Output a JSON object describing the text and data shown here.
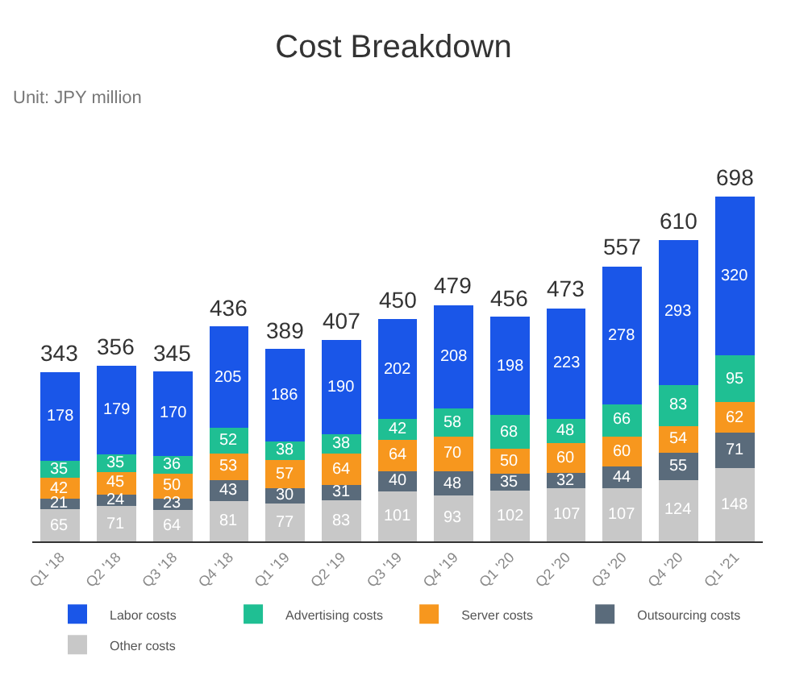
{
  "chart_data": {
    "type": "bar",
    "title": "Cost Breakdown",
    "subtitle": "Unit: JPY million",
    "categories": [
      "Q1 '18",
      "Q2 '18",
      "Q3 '18",
      "Q4 '18",
      "Q1 '19",
      "Q2 '19",
      "Q3 '19",
      "Q4 '19",
      "Q1 '20",
      "Q2 '20",
      "Q3 '20",
      "Q4 '20",
      "Q1 '21"
    ],
    "stacked": true,
    "data_labels": true,
    "legend": "bottom",
    "series": [
      {
        "name": "Other costs",
        "color": "#c8c8c8",
        "values": [
          65,
          71,
          64,
          81,
          77,
          83,
          101,
          93,
          102,
          107,
          107,
          124,
          148
        ]
      },
      {
        "name": "Outsourcing costs",
        "color": "#5a6b7b",
        "values": [
          21,
          24,
          23,
          43,
          30,
          31,
          40,
          48,
          35,
          32,
          44,
          55,
          71
        ]
      },
      {
        "name": "Server costs",
        "color": "#f7971e",
        "values": [
          42,
          45,
          50,
          53,
          57,
          64,
          64,
          70,
          50,
          60,
          60,
          54,
          62
        ]
      },
      {
        "name": "Advertising costs",
        "color": "#1fbf93",
        "values": [
          35,
          35,
          36,
          52,
          38,
          38,
          42,
          58,
          68,
          48,
          66,
          83,
          95
        ]
      },
      {
        "name": "Labor costs",
        "color": "#1a56e8",
        "values": [
          178,
          179,
          170,
          205,
          186,
          190,
          202,
          208,
          198,
          223,
          278,
          293,
          320
        ]
      }
    ],
    "totals": [
      "343",
      "356",
      "345",
      "436",
      "389",
      "407",
      "450",
      "479",
      "456",
      "473",
      "557",
      "610",
      "698"
    ]
  }
}
